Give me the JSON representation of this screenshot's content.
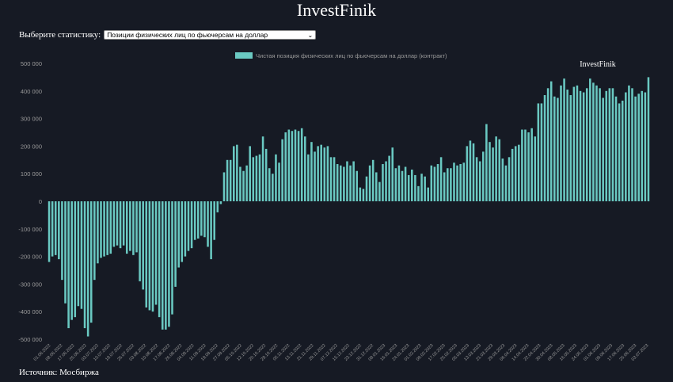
{
  "header": {
    "title": "InvestFinik"
  },
  "selector": {
    "label": "Выберите статистику:",
    "selected": "Позиции физических лиц по фьючерсам на доллар"
  },
  "footer": {
    "source": "Источник: Мосбиржа"
  },
  "colors": {
    "background": "#161a24",
    "bar": "#6ac9c2",
    "text": "#ffffff",
    "axis_text": "#9a9a9a"
  },
  "chart_data": {
    "type": "bar",
    "watermark": "InvestFinik",
    "series": [
      {
        "name": "Чистая позиция физических лиц по фьючерсам на доллар (контракт)",
        "values": [
          -220,
          -200,
          -195,
          -210,
          -285,
          -370,
          -460,
          -430,
          -420,
          -380,
          -390,
          -460,
          -490,
          -440,
          -285,
          -225,
          -205,
          -200,
          -195,
          -190,
          -165,
          -160,
          -170,
          -160,
          -190,
          -180,
          -195,
          -185,
          -290,
          -320,
          -385,
          -395,
          -400,
          -375,
          -420,
          -465,
          -465,
          -455,
          -410,
          -310,
          -240,
          -220,
          -200,
          -180,
          -170,
          -140,
          -135,
          -125,
          -130,
          -165,
          -210,
          -140,
          -40,
          -10,
          105,
          150,
          150,
          200,
          205,
          125,
          110,
          130,
          200,
          160,
          165,
          170,
          235,
          190,
          120,
          100,
          170,
          140,
          225,
          250,
          260,
          255,
          260,
          255,
          265,
          235,
          170,
          215,
          180,
          200,
          205,
          195,
          200,
          160,
          160,
          135,
          130,
          125,
          145,
          130,
          145,
          110,
          50,
          45,
          90,
          130,
          150,
          105,
          70,
          135,
          145,
          165,
          195,
          120,
          130,
          110,
          125,
          95,
          115,
          95,
          55,
          100,
          90,
          50,
          130,
          125,
          135,
          160,
          105,
          120,
          120,
          140,
          130,
          135,
          140,
          200,
          220,
          210,
          160,
          145,
          180,
          280,
          215,
          195,
          235,
          225,
          155,
          130,
          160,
          190,
          200,
          205,
          260,
          260,
          250,
          265,
          235,
          355,
          355,
          385,
          410,
          435,
          380,
          375,
          420,
          445,
          405,
          385,
          415,
          420,
          400,
          395,
          410,
          445,
          430,
          420,
          410,
          375,
          400,
          410,
          410,
          380,
          355,
          365,
          395,
          420,
          410,
          380,
          390,
          400,
          395,
          450
        ]
      }
    ],
    "x_tick_labels": [
      "01.06.2022",
      "08.06.2022",
      "17.06.2022",
      "25.06.2022",
      "03.07.2022",
      "10.07.2022",
      "18.07.2022",
      "26.07.2022",
      "03.08.2022",
      "10.08.2022",
      "17.08.2022",
      "26.08.2022",
      "04.09.2022",
      "11.09.2022",
      "19.09.2022",
      "27.09.2022",
      "05.10.2022",
      "12.10.2022",
      "20.10.2022",
      "28.10.2022",
      "05.11.2022",
      "13.11.2022",
      "21.11.2022",
      "29.11.2022",
      "07.12.2022",
      "15.12.2022",
      "23.12.2022",
      "31.12.2022",
      "08.01.2023",
      "16.01.2023",
      "24.01.2023",
      "01.02.2023",
      "09.02.2023",
      "17.02.2023",
      "25.02.2023",
      "05.03.2023",
      "13.03.2023",
      "21.03.2023",
      "29.03.2023",
      "06.04.2023",
      "14.04.2023",
      "22.04.2023",
      "30.04.2023",
      "08.05.2023",
      "16.05.2023",
      "24.05.2023",
      "01.06.2023",
      "09.06.2023",
      "17.06.2023",
      "25.06.2023",
      "03.07.2023"
    ],
    "y_ticks": [
      500000,
      400000,
      300000,
      200000,
      100000,
      0,
      -100000,
      -200000,
      -300000,
      -400000,
      -500000
    ],
    "y_tick_labels": [
      "500 000",
      "400 000",
      "300 000",
      "200 000",
      "100 000",
      "0",
      "-100 000",
      "-200 000",
      "-300 000",
      "-400 000",
      "-500 000"
    ],
    "ylim": [
      -500000,
      500000
    ],
    "value_unit_multiplier": 1000,
    "legend": {
      "position": "top"
    },
    "grid": false
  }
}
